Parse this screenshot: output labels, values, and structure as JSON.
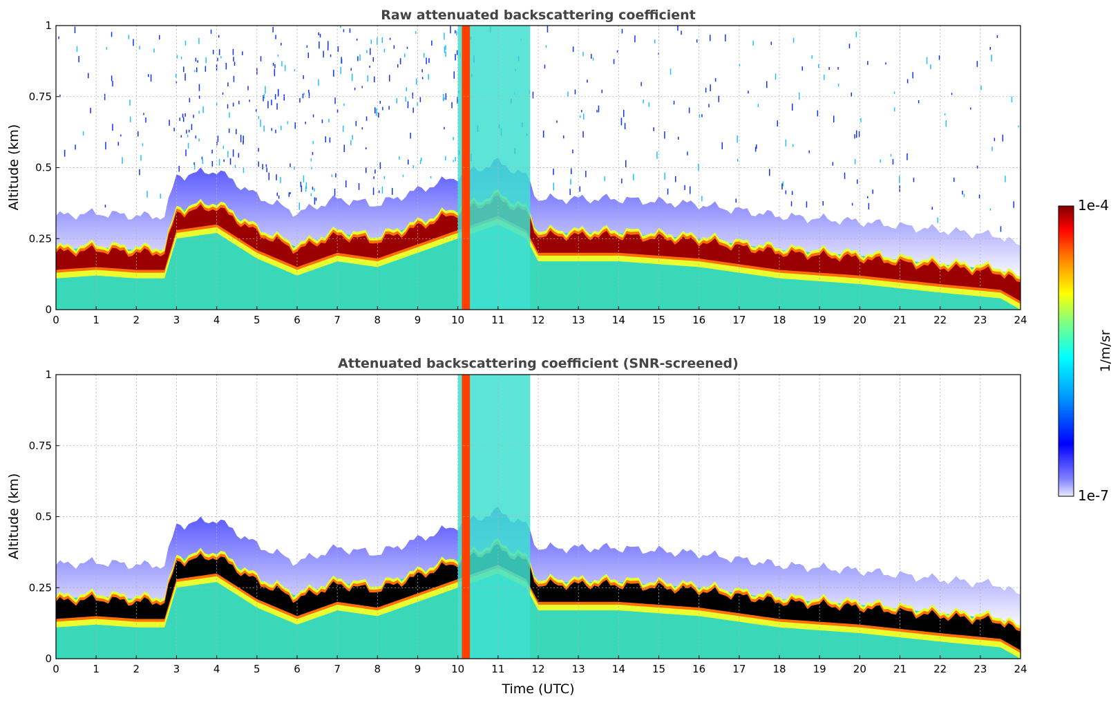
{
  "chart_data": [
    {
      "type": "heatmap",
      "title": "Raw attenuated backscattering coefficient",
      "ylabel": "Altitude (km)",
      "xlabel": "",
      "xlim": [
        0,
        24
      ],
      "ylim": [
        0,
        1
      ],
      "x_ticks": [
        "0",
        "1",
        "2",
        "3",
        "4",
        "5",
        "6",
        "7",
        "8",
        "9",
        "10",
        "11",
        "12",
        "13",
        "14",
        "15",
        "16",
        "17",
        "18",
        "19",
        "20",
        "21",
        "22",
        "23",
        "24"
      ],
      "y_ticks": [
        "0",
        "0.25",
        "0.5",
        "0.75",
        "1"
      ],
      "grid": true,
      "cloud_base_km": [
        [
          0.0,
          0.16
        ],
        [
          1.0,
          0.17
        ],
        [
          2.0,
          0.16
        ],
        [
          2.7,
          0.16
        ],
        [
          3.0,
          0.3
        ],
        [
          4.0,
          0.32
        ],
        [
          5.0,
          0.23
        ],
        [
          6.0,
          0.17
        ],
        [
          7.0,
          0.22
        ],
        [
          8.0,
          0.2
        ],
        [
          9.0,
          0.25
        ],
        [
          10.0,
          0.3
        ],
        [
          11.0,
          0.35
        ],
        [
          11.7,
          0.3
        ],
        [
          12.0,
          0.22
        ],
        [
          14.0,
          0.22
        ],
        [
          16.0,
          0.2
        ],
        [
          18.0,
          0.16
        ],
        [
          20.0,
          0.14
        ],
        [
          22.0,
          0.11
        ],
        [
          23.5,
          0.09
        ],
        [
          24.0,
          0.05
        ]
      ],
      "rain_event_utc": [
        10.1,
        10.3
      ],
      "colorscale": "jet",
      "bad_value_color": ""
    },
    {
      "type": "heatmap",
      "title": "Attenuated backscattering coefficient (SNR-screened)",
      "ylabel": "Altitude (km)",
      "xlabel": "Time (UTC)",
      "xlim": [
        0,
        24
      ],
      "ylim": [
        0,
        1
      ],
      "x_ticks": [
        "0",
        "1",
        "2",
        "3",
        "4",
        "5",
        "6",
        "7",
        "8",
        "9",
        "10",
        "11",
        "12",
        "13",
        "14",
        "15",
        "16",
        "17",
        "18",
        "19",
        "20",
        "21",
        "22",
        "23",
        "24"
      ],
      "y_ticks": [
        "0",
        "0.25",
        "0.5",
        "0.75",
        "1"
      ],
      "grid": true,
      "cloud_base_km": [
        [
          0.0,
          0.16
        ],
        [
          1.0,
          0.17
        ],
        [
          2.0,
          0.16
        ],
        [
          2.7,
          0.16
        ],
        [
          3.0,
          0.3
        ],
        [
          4.0,
          0.32
        ],
        [
          5.0,
          0.23
        ],
        [
          6.0,
          0.17
        ],
        [
          7.0,
          0.22
        ],
        [
          8.0,
          0.2
        ],
        [
          9.0,
          0.25
        ],
        [
          10.0,
          0.3
        ],
        [
          11.0,
          0.35
        ],
        [
          11.7,
          0.3
        ],
        [
          12.0,
          0.22
        ],
        [
          14.0,
          0.22
        ],
        [
          16.0,
          0.2
        ],
        [
          18.0,
          0.16
        ],
        [
          20.0,
          0.14
        ],
        [
          22.0,
          0.11
        ],
        [
          23.5,
          0.09
        ],
        [
          24.0,
          0.05
        ]
      ],
      "rain_event_utc": [
        10.1,
        10.3
      ],
      "colorscale": "jet",
      "saturated_color": "#000000"
    }
  ],
  "colorbar": {
    "label": "1/m/sr",
    "max_label": "1e-4",
    "min_label": "1e-7",
    "stops": [
      "#e8e8ff",
      "#0000ff",
      "#00a0ff",
      "#00ffff",
      "#80ff80",
      "#ffff00",
      "#ff8000",
      "#ff0000",
      "#800000"
    ]
  }
}
